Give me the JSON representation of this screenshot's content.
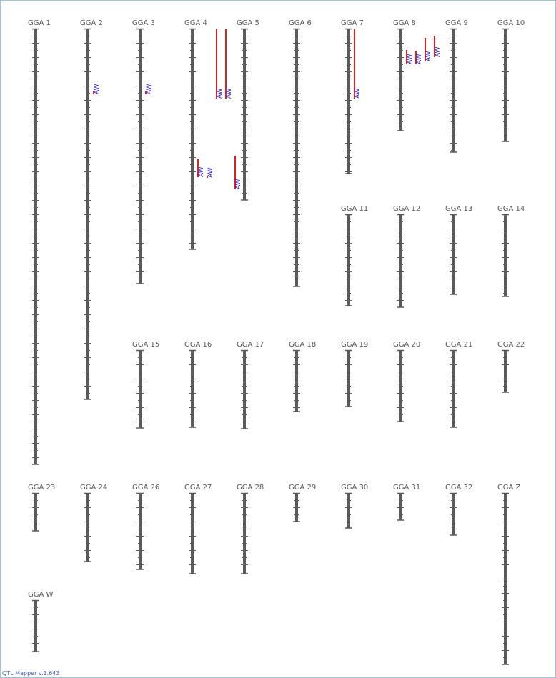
{
  "chromosomes": [
    {
      "label": "GGA 1",
      "length": 610,
      "qtls": []
    },
    {
      "label": "GGA 2",
      "length": 519,
      "qtls": [
        {
          "label": "AW",
          "start": 88,
          "end": 92
        }
      ]
    },
    {
      "label": "GGA 3",
      "length": 357,
      "qtls": [
        {
          "label": "AW",
          "start": 88,
          "end": 92
        }
      ]
    },
    {
      "label": "GGA 4",
      "length": 309,
      "qtls": [
        {
          "label": "AW",
          "start": 182,
          "end": 208
        },
        {
          "label": "AW",
          "start": 206,
          "end": 209
        },
        {
          "label": "AW",
          "start": 0,
          "end": 98
        },
        {
          "label": "AW",
          "start": 0,
          "end": 98
        },
        {
          "label": "AW",
          "start": 178,
          "end": 225
        }
      ]
    },
    {
      "label": "GGA 5",
      "length": 240,
      "qtls": []
    },
    {
      "label": "GGA 6",
      "length": 361,
      "qtls": []
    },
    {
      "label": "GGA 7",
      "length": 203,
      "qtls": [
        {
          "label": "AW",
          "start": 0,
          "end": 98
        }
      ]
    },
    {
      "label": "GGA 8",
      "length": 143,
      "qtls": [
        {
          "label": "AW",
          "start": 30,
          "end": 50
        },
        {
          "label": "AW",
          "start": 31,
          "end": 50
        },
        {
          "label": "AW",
          "start": 13,
          "end": 46
        },
        {
          "label": "AW",
          "start": 10,
          "end": 40
        }
      ]
    },
    {
      "label": "GGA 9",
      "length": 173,
      "qtls": []
    },
    {
      "label": "GGA 10",
      "length": 158,
      "qtls": []
    },
    {
      "label": "GGA 11",
      "length": 128,
      "qtls": []
    },
    {
      "label": "GGA 12",
      "length": 130,
      "qtls": []
    },
    {
      "label": "GGA 13",
      "length": 112,
      "qtls": []
    },
    {
      "label": "GGA 14",
      "length": 115,
      "qtls": []
    },
    {
      "label": "GGA 15",
      "length": 109,
      "qtls": []
    },
    {
      "label": "GGA 16",
      "length": 108,
      "qtls": []
    },
    {
      "label": "GGA 17",
      "length": 110,
      "qtls": []
    },
    {
      "label": "GGA 18",
      "length": 86,
      "qtls": []
    },
    {
      "label": "GGA 19",
      "length": 79,
      "qtls": []
    },
    {
      "label": "GGA 20",
      "length": 100,
      "qtls": []
    },
    {
      "label": "GGA 21",
      "length": 108,
      "qtls": []
    },
    {
      "label": "GGA 22",
      "length": 59,
      "qtls": []
    },
    {
      "label": "GGA 23",
      "length": 53,
      "qtls": []
    },
    {
      "label": "GGA 24",
      "length": 96,
      "qtls": []
    },
    {
      "label": "GGA 26",
      "length": 107,
      "qtls": []
    },
    {
      "label": "GGA 27",
      "length": 113,
      "qtls": []
    },
    {
      "label": "GGA 28",
      "length": 113,
      "qtls": []
    },
    {
      "label": "GGA 29",
      "length": 40,
      "qtls": []
    },
    {
      "label": "GGA 30",
      "length": 49,
      "qtls": []
    },
    {
      "label": "GGA 31",
      "length": 38,
      "qtls": []
    },
    {
      "label": "GGA 32",
      "length": 59,
      "qtls": []
    },
    {
      "label": "GGA Z",
      "length": 240,
      "qtls": []
    },
    {
      "label": "GGA W",
      "length": 72,
      "qtls": []
    }
  ],
  "footer": "QTL Mapper v.1.643"
}
